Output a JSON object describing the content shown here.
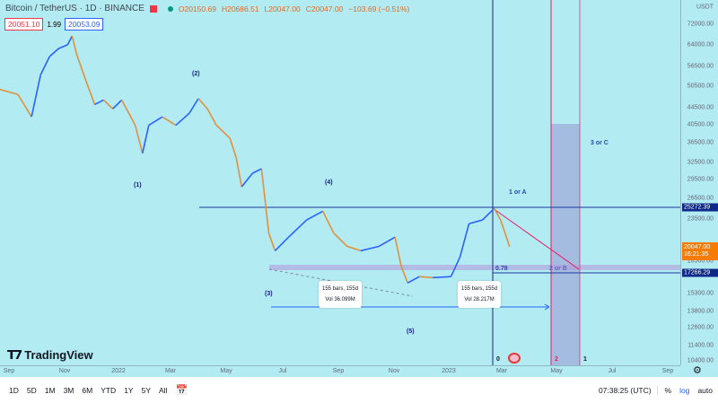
{
  "header": {
    "symbol": "Bitcoin / TetherUS · 1D · BINANCE",
    "open": "O20150.69",
    "high": "H20686.51",
    "low": "L20047.00",
    "close": "C20047.00",
    "change": "−103.69 (−0.51%)",
    "bid": "20051.10",
    "spread": "1.99",
    "ask": "20053.09"
  },
  "colors": {
    "background": "#b2ebf2",
    "up": "#2962ff",
    "down": "#e0913c",
    "price_tag": "#f57c00",
    "level_tag": "#0d2a8a",
    "red_lines": "#e91e63",
    "band": "#9fa8da"
  },
  "price_axis": {
    "currency": "USDT",
    "ticks": [
      "72000.00",
      "64000.00",
      "56500.00",
      "50500.00",
      "44500.00",
      "40500.00",
      "36500.00",
      "32500.00",
      "29500.00",
      "26500.00",
      "23500.00",
      "18500.00",
      "15300.00",
      "13800.00",
      "12600.00",
      "11400.00",
      "10400.00"
    ],
    "last_price": "20047.00",
    "countdown": "16:21:35",
    "level_high": "25272.39",
    "level_low": "17266.29"
  },
  "time_axis": {
    "ticks": [
      "Sep",
      "Nov",
      "2022",
      "Mar",
      "May",
      "Jul",
      "Sep",
      "Nov",
      "2023",
      "Mar",
      "May",
      "Jul",
      "Sep"
    ]
  },
  "chart_data": {
    "type": "line",
    "scale": "log",
    "ylim": [
      10400,
      78000
    ],
    "series": [
      {
        "values": [
          [
            "2021-08-22",
            49500
          ],
          [
            "2021-09-11",
            48100
          ],
          [
            "2021-09-26",
            42300
          ],
          [
            "2021-10-06",
            53800
          ],
          [
            "2021-10-16",
            59800
          ],
          [
            "2021-10-26",
            62600
          ],
          [
            "2021-11-05",
            64000
          ],
          [
            "2021-11-10",
            67300
          ],
          [
            "2021-11-15",
            60600
          ],
          [
            "2021-11-25",
            52300
          ],
          [
            "2021-12-05",
            45400
          ],
          [
            "2021-12-15",
            46600
          ],
          [
            "2021-12-25",
            44300
          ],
          [
            "2022-01-04",
            46600
          ],
          [
            "2022-01-19",
            40300
          ],
          [
            "2022-01-27",
            34300
          ],
          [
            "2022-02-03",
            40300
          ],
          [
            "2022-02-18",
            42300
          ],
          [
            "2022-03-05",
            40300
          ],
          [
            "2022-03-20",
            43200
          ],
          [
            "2022-03-30",
            47000
          ],
          [
            "2022-04-09",
            44300
          ],
          [
            "2022-04-19",
            40300
          ],
          [
            "2022-05-04",
            37400
          ],
          [
            "2022-05-11",
            33400
          ],
          [
            "2022-05-17",
            28300
          ],
          [
            "2022-05-29",
            30600
          ],
          [
            "2022-06-08",
            31400
          ],
          [
            "2022-06-16",
            21700
          ],
          [
            "2022-06-23",
            19600
          ],
          [
            "2022-07-08",
            21200
          ],
          [
            "2022-07-28",
            23400
          ],
          [
            "2022-08-15",
            24600
          ],
          [
            "2022-08-27",
            21700
          ],
          [
            "2022-09-11",
            20100
          ],
          [
            "2022-09-26",
            19600
          ],
          [
            "2022-10-16",
            20100
          ],
          [
            "2022-11-03",
            21200
          ],
          [
            "2022-11-10",
            17900
          ],
          [
            "2022-11-17",
            16300
          ],
          [
            "2022-11-30",
            16900
          ],
          [
            "2022-12-15",
            16800
          ],
          [
            "2023-01-04",
            16900
          ],
          [
            "2023-01-14",
            18900
          ],
          [
            "2023-01-24",
            22900
          ],
          [
            "2023-02-08",
            23400
          ],
          [
            "2023-02-21",
            25000
          ],
          [
            "2023-02-28",
            23400
          ],
          [
            "2023-03-05",
            21700
          ],
          [
            "2023-03-10",
            20047
          ]
        ]
      }
    ]
  },
  "annotations": {
    "w1": "(1)",
    "w2": "(2)",
    "w3": "(3)",
    "w4": "(4)",
    "w5": "(5)",
    "one_or_a": "1 or A",
    "three_or_c": "3 or C",
    "fib": "0.78",
    "two_or_b": "2 or B",
    "n0": "0",
    "n2": "2",
    "n1": "1",
    "box1_l1": "155 bars, 155d",
    "box1_l2": "Vol 36.099M",
    "box2_l1": "155 bars, 155d",
    "box2_l2": "Vol 28.217M"
  },
  "logo": "TradingView",
  "toolbar": {
    "ranges": [
      "1D",
      "5D",
      "1M",
      "3M",
      "6M",
      "YTD",
      "1Y",
      "5Y",
      "All"
    ],
    "time": "07:38:25 (UTC)",
    "percent": "%",
    "log": "log",
    "auto": "auto"
  }
}
